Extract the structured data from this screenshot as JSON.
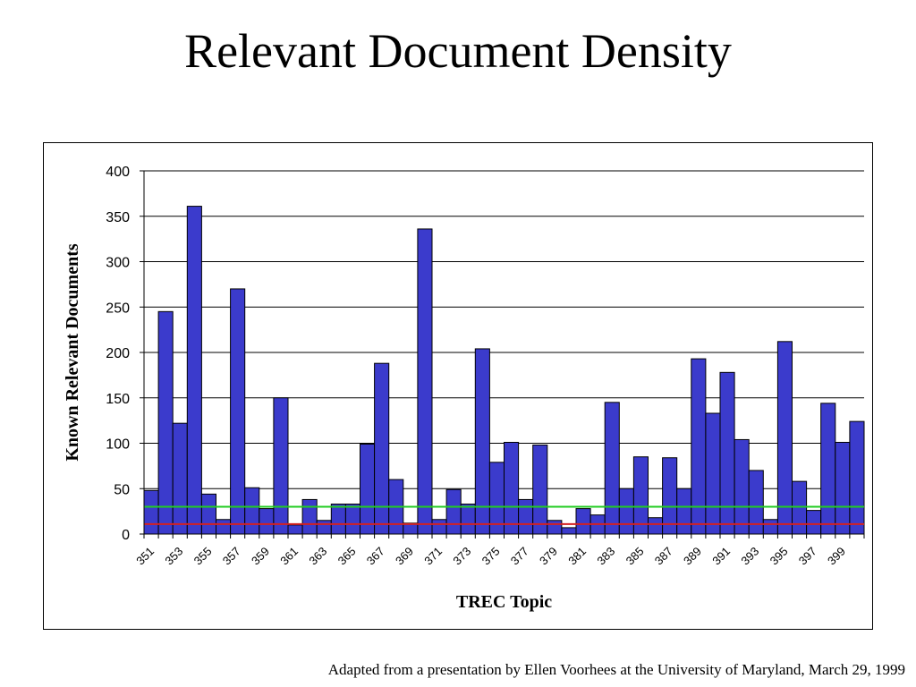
{
  "slide": {
    "title": "Relevant Document Density",
    "footnote": "Adapted from a presentation by Ellen Voorhees at the University of Maryland, March 29, 1999"
  },
  "chart_data": {
    "type": "bar",
    "xlabel": "TREC Topic",
    "ylabel": "Known Relevant Documents",
    "ylim": [
      0,
      400
    ],
    "yticks": [
      0,
      50,
      100,
      150,
      200,
      250,
      300,
      350,
      400
    ],
    "grid": true,
    "legend": "none",
    "categories": [
      351,
      352,
      353,
      354,
      355,
      356,
      357,
      358,
      359,
      360,
      361,
      362,
      363,
      364,
      365,
      366,
      367,
      368,
      369,
      370,
      371,
      372,
      373,
      374,
      375,
      376,
      377,
      378,
      379,
      380,
      381,
      382,
      383,
      384,
      385,
      386,
      387,
      388,
      389,
      390,
      391,
      392,
      393,
      394,
      395,
      396,
      397,
      398,
      399,
      400
    ],
    "tick_labels": [
      "351",
      "353",
      "355",
      "357",
      "359",
      "361",
      "363",
      "365",
      "367",
      "369",
      "371",
      "373",
      "375",
      "377",
      "379",
      "381",
      "383",
      "385",
      "387",
      "389",
      "391",
      "393",
      "395",
      "397",
      "399"
    ],
    "series": [
      {
        "values": [
          48,
          245,
          122,
          361,
          44,
          16,
          270,
          51,
          28,
          150,
          10,
          38,
          15,
          33,
          33,
          99,
          188,
          60,
          12,
          336,
          16,
          49,
          33,
          204,
          79,
          101,
          38,
          98,
          15,
          7,
          28,
          21,
          145,
          50,
          85,
          18,
          84,
          50,
          193,
          133,
          178,
          104,
          70,
          16,
          212,
          58,
          26,
          144,
          101,
          124
        ]
      }
    ],
    "reference_lines": [
      {
        "value": 30,
        "color": "#22cc22"
      },
      {
        "value": 11,
        "color": "#d42020"
      }
    ],
    "colors": {
      "bar_fill": "#3b3bcc",
      "bar_stroke": "#000000",
      "gridline": "#000000"
    }
  }
}
